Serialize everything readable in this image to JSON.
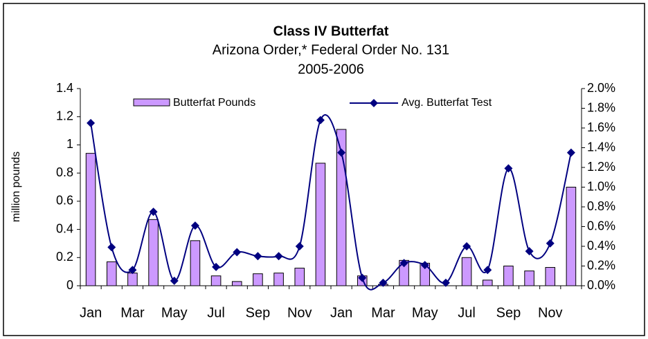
{
  "chart_data": {
    "type": "bar_line",
    "title": "Class IV Butterfat",
    "subtitle": [
      "Arizona Order,* Federal Order No. 131",
      "2005-2006"
    ],
    "y_label": "million pounds",
    "categories": [
      "Jan",
      null,
      "Mar",
      null,
      "May",
      null,
      "Jul",
      null,
      "Sep",
      null,
      "Nov",
      null,
      "Jan",
      null,
      "Mar",
      null,
      "May",
      null,
      "Jul",
      null,
      "Sep",
      null,
      "Nov",
      null
    ],
    "series": [
      {
        "name": "Butterfat Pounds",
        "type": "bar",
        "color": "#cc99ff",
        "axis": "y",
        "values": [
          0.94,
          0.17,
          0.09,
          0.47,
          0,
          0.32,
          0.07,
          0.03,
          0.085,
          0.09,
          0.125,
          0.87,
          1.11,
          0.07,
          0.01,
          0.18,
          0.16,
          0,
          0.2,
          0.04,
          0.14,
          0.105,
          0.13,
          0.7
        ]
      },
      {
        "name": "Avg. Butterfat Test",
        "type": "line",
        "color": "#000080",
        "axis": "y2",
        "values": [
          1.65,
          0.39,
          0.16,
          0.75,
          0.05,
          0.61,
          0.19,
          0.34,
          0.3,
          0.3,
          0.4,
          1.68,
          1.35,
          0.08,
          0.03,
          0.23,
          0.21,
          0.03,
          0.4,
          0.16,
          1.19,
          0.35,
          0.43,
          1.35
        ]
      }
    ],
    "ylim": [
      0,
      1.4
    ],
    "yticks": [
      0,
      0.2,
      0.4,
      0.6,
      0.8,
      1,
      1.2,
      1.4
    ],
    "y2lim": [
      0,
      2
    ],
    "y2ticks": [
      {
        "value": 0,
        "label": "0.0%"
      },
      {
        "value": 0.2,
        "label": "0.2%"
      },
      {
        "value": 0.4,
        "label": "0.4%"
      },
      {
        "value": 0.6,
        "label": "0.6%"
      },
      {
        "value": 0.8,
        "label": "0.8%"
      },
      {
        "value": 1,
        "label": "1.0%"
      },
      {
        "value": 1.2,
        "label": "1.2%"
      },
      {
        "value": 1.4,
        "label": "1.4%"
      },
      {
        "value": 1.6,
        "label": "1.6%"
      },
      {
        "value": 1.8,
        "label": "1.8%"
      },
      {
        "value": 2,
        "label": "2.0%"
      }
    ],
    "grid": false
  }
}
